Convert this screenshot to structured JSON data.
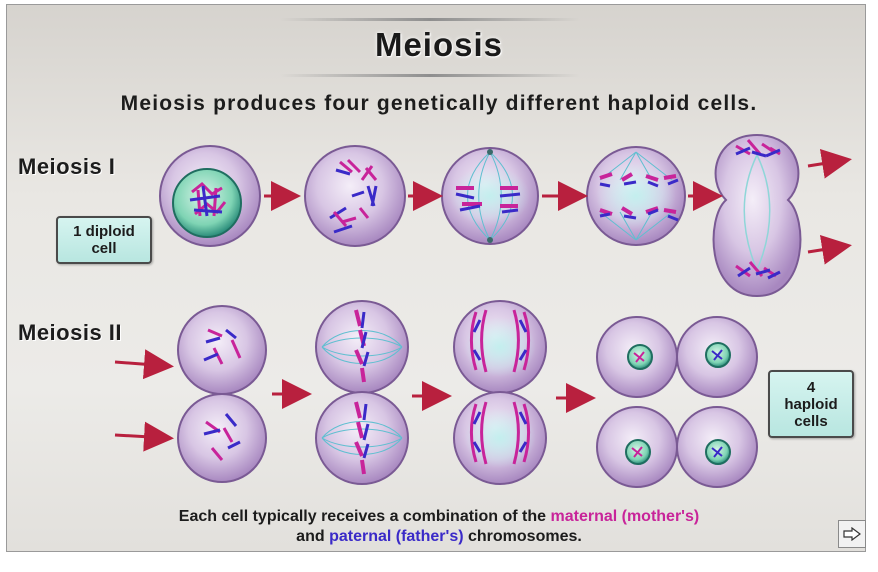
{
  "title": "Meiosis",
  "subtitle": "Meiosis produces four genetically different haploid cells.",
  "meiosis_1": {
    "label": "Meiosis I",
    "start_box": [
      "1 diploid",
      "cell"
    ]
  },
  "meiosis_2": {
    "label": "Meiosis II",
    "end_box": [
      "4",
      "haploid",
      "cells"
    ]
  },
  "caption": {
    "part1": "Each cell typically receives a combination of the ",
    "maternal": "maternal (mother's)",
    "part2": "and ",
    "paternal": "paternal (father's)",
    "part3": " chromosomes."
  },
  "colors": {
    "maternal": "#c8249a",
    "paternal": "#3a2ac8",
    "arrow": "#b8203e",
    "cell": "#c4a8d6",
    "spindle": "#5fd0cc"
  },
  "icons": {
    "next": "next-arrow-icon"
  }
}
